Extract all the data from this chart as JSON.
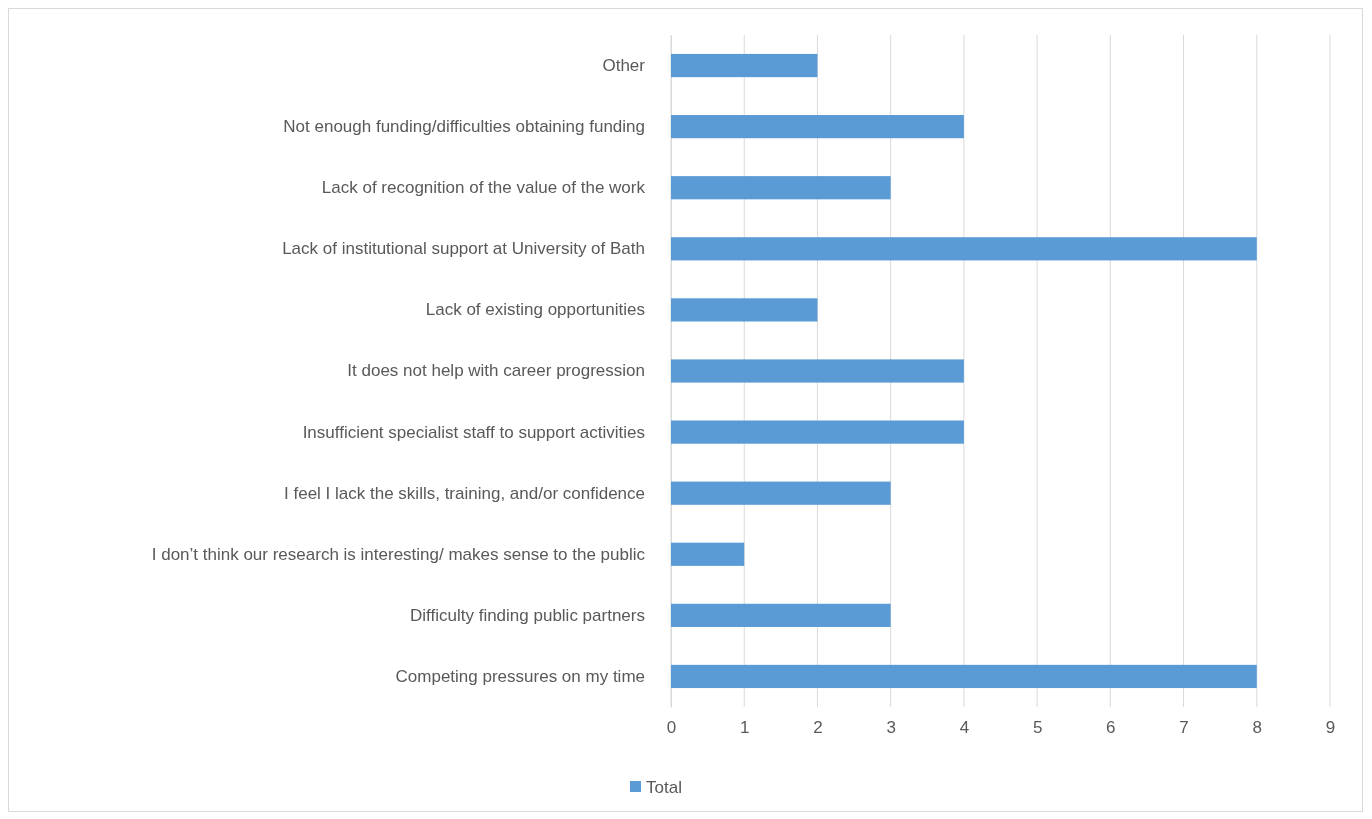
{
  "chart_data": {
    "type": "bar",
    "orientation": "horizontal",
    "categories": [
      "Other",
      "Not enough funding/difficulties obtaining funding",
      "Lack of recognition of the value of the work",
      "Lack of institutional support at University of Bath",
      "Lack of existing opportunities",
      "It does not help with career progression",
      "Insufficient specialist staff to support activities",
      "I feel I lack the skills, training, and/or confidence",
      "I don’t think our research is interesting/ makes sense to the public",
      "Difficulty finding public partners",
      "Competing pressures on my time"
    ],
    "series": [
      {
        "name": "Total",
        "color": "#5b9bd5",
        "values": [
          2,
          4,
          3,
          8,
          2,
          4,
          4,
          3,
          1,
          3,
          8
        ]
      }
    ],
    "xlim": [
      0,
      9
    ],
    "xticks": [
      0,
      1,
      2,
      3,
      4,
      5,
      6,
      7,
      8,
      9
    ],
    "grid": "x",
    "legend": "bottom"
  }
}
